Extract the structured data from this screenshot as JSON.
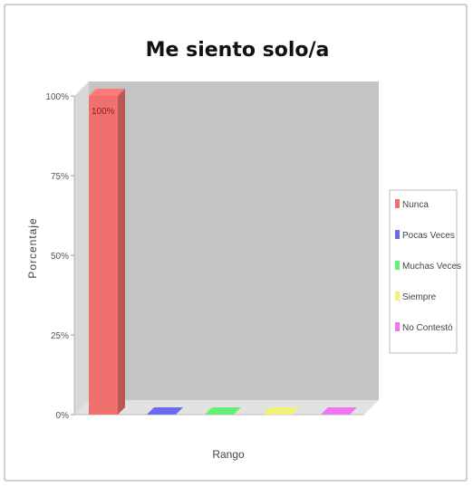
{
  "chart_data": {
    "type": "bar",
    "title": "Me siento solo/a",
    "xlabel": "Rango",
    "ylabel": "Porcentaje",
    "ylim": [
      0,
      100
    ],
    "yticks": [
      "0%",
      "25%",
      "50%",
      "75%",
      "100%"
    ],
    "grid": false,
    "legend_position": "right",
    "series": [
      {
        "name": "Nunca",
        "value": 100,
        "label": "100%",
        "color": "#f07070"
      },
      {
        "name": "Pocas Veces",
        "value": 0,
        "label": "",
        "color": "#6a6af0"
      },
      {
        "name": "Muchas Veces",
        "value": 0,
        "label": "",
        "color": "#66ee77"
      },
      {
        "name": "Siempre",
        "value": 0,
        "label": "",
        "color": "#f2f27a"
      },
      {
        "name": "No Contestó",
        "value": 0,
        "label": "",
        "color": "#ee77ee"
      }
    ]
  }
}
